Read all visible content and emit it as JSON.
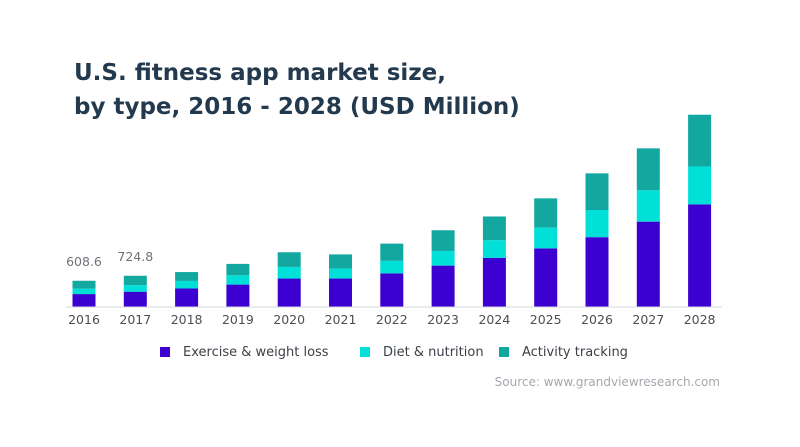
{
  "title_line_1": "U.S. fitness app market size,",
  "title_line_2": "by type, 2016 - 2028 (USD Million)",
  "source": "Source: www.grandviewresearch.com",
  "chart_data": {
    "type": "bar",
    "stacked": true,
    "title": "U.S. fitness app market size, by type, 2016 - 2028 (USD Million)",
    "xlabel": "",
    "ylabel": "",
    "grid": false,
    "legend_position": "bottom",
    "categories": [
      "2016",
      "2017",
      "2018",
      "2019",
      "2020",
      "2021",
      "2022",
      "2023",
      "2024",
      "2025",
      "2026",
      "2027",
      "2028"
    ],
    "ylim": [
      0,
      4500
    ],
    "series": [
      {
        "name": "Exercise & weight loss",
        "color": "#3c00d0",
        "values": [
          300,
          355,
          430,
          520,
          660,
          660,
          780,
          960,
          1140,
          1360,
          1620,
          1980,
          2380
        ]
      },
      {
        "name": "Diet & nutrition",
        "color": "#00e0d8",
        "values": [
          125,
          150,
          175,
          215,
          270,
          230,
          290,
          340,
          410,
          480,
          630,
          730,
          880
        ]
      },
      {
        "name": "Activity tracking",
        "color": "#12a8a0",
        "values": [
          183.6,
          219.8,
          205,
          265,
          340,
          330,
          400,
          480,
          550,
          680,
          850,
          970,
          1200
        ]
      }
    ],
    "data_labels": [
      {
        "category": "2016",
        "text": "608.6"
      },
      {
        "category": "2017",
        "text": "724.8"
      }
    ]
  }
}
